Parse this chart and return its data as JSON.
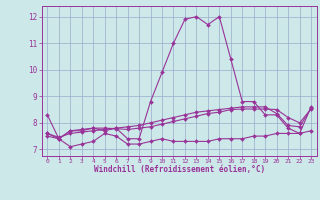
{
  "title": "",
  "xlabel": "Windchill (Refroidissement éolien,°C)",
  "background_color": "#cce8e8",
  "line_color": "#993399",
  "grid_color": "#99aacc",
  "xlim": [
    -0.5,
    23.5
  ],
  "ylim": [
    6.75,
    12.4
  ],
  "xticks": [
    0,
    1,
    2,
    3,
    4,
    5,
    6,
    7,
    8,
    9,
    10,
    11,
    12,
    13,
    14,
    15,
    16,
    17,
    18,
    19,
    20,
    21,
    22,
    23
  ],
  "yticks": [
    7,
    8,
    9,
    10,
    11,
    12
  ],
  "hours": [
    0,
    1,
    2,
    3,
    4,
    5,
    6,
    7,
    8,
    9,
    10,
    11,
    12,
    13,
    14,
    15,
    16,
    17,
    18,
    19,
    20,
    21,
    22,
    23
  ],
  "line1": [
    8.3,
    7.4,
    7.1,
    7.2,
    7.3,
    7.6,
    7.5,
    7.2,
    7.2,
    7.3,
    7.4,
    7.3,
    7.3,
    7.3,
    7.3,
    7.4,
    7.4,
    7.4,
    7.5,
    7.5,
    7.6,
    7.6,
    7.6,
    7.7
  ],
  "line2": [
    7.6,
    7.45,
    7.6,
    7.65,
    7.7,
    7.75,
    7.8,
    7.85,
    7.9,
    8.0,
    8.1,
    8.2,
    8.3,
    8.4,
    8.45,
    8.5,
    8.55,
    8.6,
    8.6,
    8.6,
    8.35,
    7.9,
    7.85,
    8.55
  ],
  "line3": [
    7.5,
    7.4,
    7.7,
    7.7,
    7.8,
    7.7,
    7.8,
    7.4,
    7.4,
    8.8,
    9.9,
    11.0,
    11.9,
    12.0,
    11.7,
    12.0,
    10.4,
    8.8,
    8.8,
    8.3,
    8.3,
    7.8,
    7.6,
    8.6
  ],
  "line4": [
    7.6,
    7.4,
    7.7,
    7.75,
    7.8,
    7.8,
    7.78,
    7.75,
    7.8,
    7.85,
    7.95,
    8.05,
    8.15,
    8.25,
    8.35,
    8.4,
    8.5,
    8.52,
    8.52,
    8.52,
    8.5,
    8.2,
    8.0,
    8.52
  ]
}
